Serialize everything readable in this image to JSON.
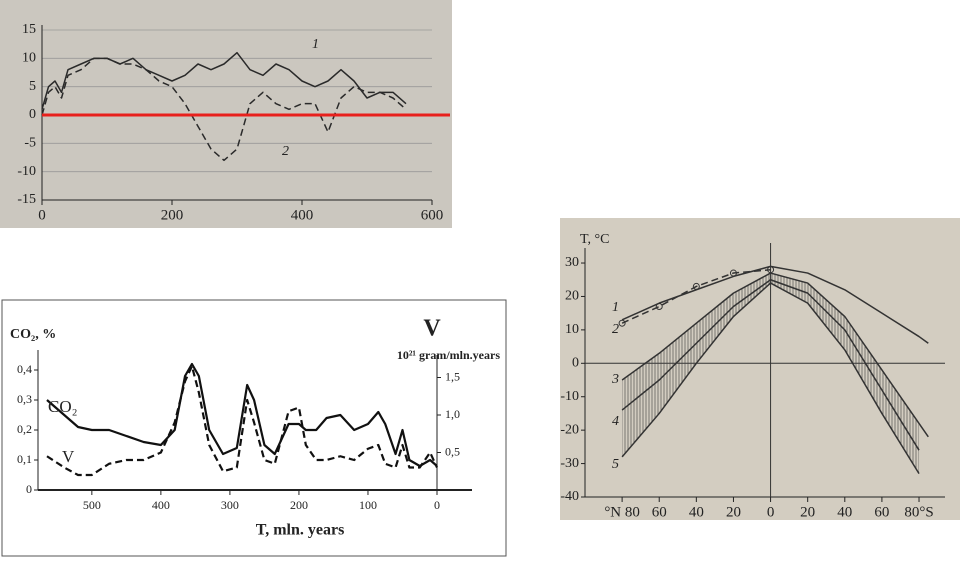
{
  "chart_data": [
    {
      "type": "line",
      "x": [
        0,
        10,
        20,
        30,
        40,
        60,
        80,
        100,
        120,
        140,
        160,
        180,
        200,
        220,
        240,
        260,
        280,
        300,
        320,
        340,
        360,
        380,
        400,
        420,
        440,
        460,
        480,
        500,
        520,
        540,
        560
      ],
      "series": [
        {
          "name": "1",
          "color": "#2a2a2a",
          "line_style": "solid",
          "values": [
            1,
            5,
            6,
            4,
            8,
            9,
            10,
            10,
            9,
            10,
            8,
            7,
            6,
            7,
            9,
            8,
            9,
            11,
            8,
            7,
            9,
            8,
            6,
            5,
            6,
            8,
            6,
            3,
            4,
            4,
            2
          ]
        },
        {
          "name": "2",
          "color": "#2a2a2a",
          "line_style": "dashed",
          "values": [
            0,
            4,
            5,
            3,
            7,
            8,
            10,
            10,
            9,
            9,
            8,
            6,
            5,
            2,
            -2,
            -6,
            -8,
            -6,
            2,
            4,
            2,
            1,
            2,
            2,
            -3,
            3,
            5,
            4,
            4,
            3,
            1
          ]
        }
      ],
      "xlim": [
        0,
        600
      ],
      "xticks": [
        0,
        200,
        400,
        600
      ],
      "ylim": [
        -15,
        15
      ],
      "yticks": [
        -15,
        -10,
        -5,
        0,
        5,
        10,
        15
      ],
      "grid": true,
      "reference_line": {
        "y": 0,
        "color": "#e8201c"
      }
    },
    {
      "type": "line",
      "x": [
        565,
        540,
        520,
        500,
        475,
        450,
        425,
        400,
        380,
        365,
        355,
        345,
        330,
        310,
        290,
        275,
        265,
        250,
        235,
        215,
        200,
        190,
        175,
        160,
        140,
        120,
        100,
        85,
        75,
        60,
        50,
        40,
        25,
        10,
        0
      ],
      "series": [
        {
          "name": "CO₂",
          "color": "#111111",
          "line_style": "solid",
          "values": [
            0.3,
            0.25,
            0.21,
            0.2,
            0.2,
            0.18,
            0.16,
            0.15,
            0.2,
            0.38,
            0.42,
            0.38,
            0.2,
            0.12,
            0.14,
            0.35,
            0.3,
            0.15,
            0.12,
            0.22,
            0.22,
            0.2,
            0.2,
            0.24,
            0.25,
            0.2,
            0.22,
            0.26,
            0.22,
            0.12,
            0.2,
            0.1,
            0.08,
            0.1,
            0.08
          ]
        },
        {
          "name": "V",
          "color": "#111111",
          "line_style": "dashed",
          "axis": "y2",
          "values": [
            0.45,
            0.3,
            0.2,
            0.2,
            0.35,
            0.4,
            0.4,
            0.5,
            0.9,
            1.45,
            1.65,
            1.3,
            0.6,
            0.25,
            0.3,
            1.2,
            0.9,
            0.4,
            0.35,
            1.05,
            1.1,
            0.6,
            0.4,
            0.4,
            0.45,
            0.4,
            0.55,
            0.6,
            0.35,
            0.3,
            0.6,
            0.3,
            0.3,
            0.5,
            0.3
          ]
        }
      ],
      "y_label": "CO₂, %",
      "y2_label": "V",
      "y2_unit": "10²¹ gram/mln.years",
      "x_label": "T, mln. years",
      "xlim": [
        578,
        0
      ],
      "xticks": [
        500,
        400,
        300,
        200,
        100,
        0
      ],
      "ylim": [
        0,
        0.45
      ],
      "yticks": [
        0,
        {
          "value": 0.1,
          "label": "0,1"
        },
        {
          "value": 0.2,
          "label": "0,2"
        },
        {
          "value": 0.3,
          "label": "0,3"
        },
        {
          "value": 0.4,
          "label": "0,4"
        }
      ],
      "y2lim": [
        0,
        1.8
      ],
      "y2ticks": [
        {
          "value": 0.5,
          "label": "0,5"
        },
        {
          "value": 1.0,
          "label": "1,0"
        },
        {
          "value": 1.5,
          "label": "1,5"
        }
      ],
      "grid": false
    },
    {
      "type": "line",
      "x": [
        -80,
        -60,
        -40,
        -20,
        0,
        20,
        40,
        60,
        80,
        85
      ],
      "series": [
        {
          "name": "1",
          "color": "#333333",
          "line_style": "solid",
          "values": [
            13,
            18,
            22,
            26,
            29,
            27,
            22,
            15,
            8,
            6
          ]
        },
        {
          "name": "2",
          "color": "#333333",
          "line_style": "dashed",
          "marker": "circle",
          "values": [
            12,
            17,
            23,
            27,
            28,
            null,
            null,
            null,
            null,
            null
          ]
        },
        {
          "name": "3",
          "color": "#333333",
          "line_style": "solid",
          "values": [
            -5,
            3,
            12,
            21,
            27,
            24,
            14,
            -2,
            -18,
            -22
          ]
        },
        {
          "name": "4",
          "color": "#333333",
          "line_style": "solid",
          "values": [
            -14,
            -5,
            6,
            17,
            25,
            21,
            10,
            -8,
            -26,
            null
          ]
        },
        {
          "name": "5",
          "color": "#333333",
          "line_style": "solid",
          "values": [
            -28,
            -15,
            0,
            14,
            24,
            18,
            4,
            -15,
            -33,
            null
          ]
        }
      ],
      "shaded_band": [
        "3",
        "5"
      ],
      "y_label": "T, °C",
      "xlim": [
        -100,
        94
      ],
      "xticks": [
        {
          "value": -80,
          "label": "°N 80"
        },
        {
          "value": -60,
          "label": "60"
        },
        {
          "value": -40,
          "label": "40"
        },
        {
          "value": -20,
          "label": "20"
        },
        0,
        20,
        40,
        60,
        {
          "value": 80,
          "label": "80°S"
        }
      ],
      "ylim": [
        -40,
        33
      ],
      "yticks": [
        -40,
        -30,
        -20,
        -10,
        0,
        10,
        20,
        30
      ],
      "grid": false,
      "zero_lines": true
    }
  ]
}
